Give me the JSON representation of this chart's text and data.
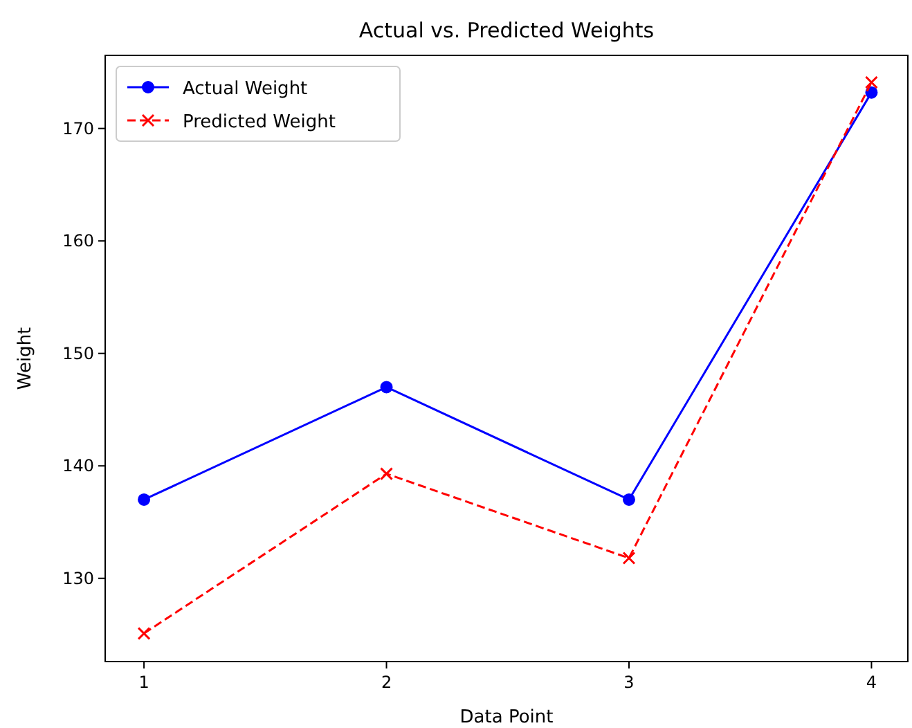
{
  "chart_data": {
    "type": "line",
    "title": "Actual vs. Predicted Weights",
    "xlabel": "Data Point",
    "ylabel": "Weight",
    "x": [
      1,
      2,
      3,
      4
    ],
    "series": [
      {
        "name": "Actual Weight",
        "color": "#0000ff",
        "values": [
          137,
          147,
          137,
          173.2
        ],
        "marker": "circle",
        "line_style": "solid"
      },
      {
        "name": "Predicted Weight",
        "color": "#ff0000",
        "values": [
          125.1,
          139.3,
          131.8,
          174.1
        ],
        "marker": "cross",
        "line_style": "dashed"
      }
    ],
    "xlim": [
      0.84,
      4.15
    ],
    "xticks": [
      1,
      2,
      3,
      4
    ],
    "ylim": [
      122.6,
      176.5
    ],
    "yticks": [
      130,
      140,
      150,
      160,
      170
    ],
    "grid": false,
    "legend": "top left"
  }
}
